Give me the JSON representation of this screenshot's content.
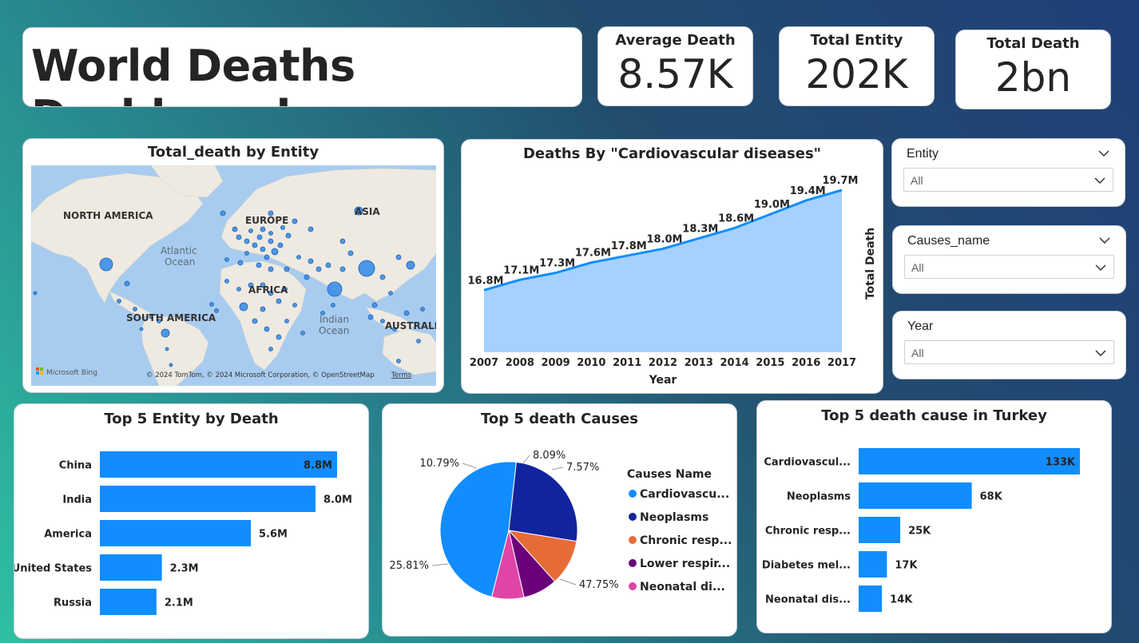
{
  "header": {
    "title": "World Deaths Dashboard"
  },
  "kpis": [
    {
      "label": "Average Death",
      "value": "8.57K"
    },
    {
      "label": "Total Entity",
      "value": "202K"
    },
    {
      "label": "Total Death",
      "value": "2bn"
    }
  ],
  "map": {
    "title": "Total_death by Entity",
    "labels": {
      "north_america": "NORTH AMERICA",
      "europe": "EUROPE",
      "asia": "ASIA",
      "africa": "AFRICA",
      "south_america": "SOUTH AMERICA",
      "australia": "AUSTRALIA",
      "atlantic": "Atlantic",
      "ocean": "Ocean",
      "indian": "Indian",
      "ocean2": "Ocean"
    },
    "attribution": "© 2024 TomTom, © 2024 Microsoft Corporation, © OpenStreetMap",
    "terms": "Terms",
    "logo": "Microsoft Bing",
    "colors": {
      "water": "#a8ccef",
      "land": "#eeeae1",
      "bubble": "#3a8ee8"
    }
  },
  "slicers": [
    {
      "label": "Entity",
      "value": "All"
    },
    {
      "label": "Causes_name",
      "value": "All"
    },
    {
      "label": "Year",
      "value": "All"
    }
  ],
  "chart_data": [
    {
      "type": "area",
      "title": "Deaths By \"Cardiovascular diseases\"",
      "xlabel": "Year",
      "ylabel": "Total Death",
      "x": [
        "2007",
        "2008",
        "2009",
        "2010",
        "2011",
        "2012",
        "2013",
        "2014",
        "2015",
        "2016",
        "2017"
      ],
      "values": [
        16.8,
        17.1,
        17.3,
        17.6,
        17.8,
        18.0,
        18.3,
        18.6,
        19.0,
        19.4,
        19.7
      ],
      "data_labels": [
        "16.8M",
        "17.1M",
        "17.3M",
        "17.6M",
        "17.8M",
        "18.0M",
        "18.3M",
        "18.6M",
        "19.0M",
        "19.4M",
        "19.7M"
      ],
      "unit": "M",
      "colors": {
        "line": "#118dff",
        "fill": "#a6d1ff"
      }
    },
    {
      "type": "bar",
      "orientation": "horizontal",
      "title": "Top 5 Entity by Death",
      "categories": [
        "China",
        "India",
        "America",
        "United States",
        "Russia"
      ],
      "values": [
        8.8,
        8.0,
        5.6,
        2.3,
        2.1
      ],
      "data_labels": [
        "8.8M",
        "8.0M",
        "5.6M",
        "2.3M",
        "2.1M"
      ],
      "unit": "M",
      "color": "#118dff"
    },
    {
      "type": "pie",
      "title": "Top 5 death Causes",
      "legend_title": "Causes Name",
      "legend_placement": "right",
      "categories": [
        "Cardiovascu...",
        "Neoplasms",
        "Chronic resp...",
        "Lower respir...",
        "Neonatal di..."
      ],
      "values": [
        47.75,
        25.81,
        10.79,
        8.09,
        7.57
      ],
      "data_labels": [
        "47.75%",
        "25.81%",
        "10.79%",
        "8.09%",
        "7.57%"
      ],
      "colors": [
        "#118dff",
        "#12239e",
        "#e66c37",
        "#6b007b",
        "#e044a7"
      ]
    },
    {
      "type": "bar",
      "orientation": "horizontal",
      "title": "Top 5 death cause in Turkey",
      "categories": [
        "Cardiovascul...",
        "Neoplasms",
        "Chronic resp...",
        "Diabetes mel...",
        "Neonatal dis..."
      ],
      "values": [
        133,
        68,
        25,
        17,
        14
      ],
      "data_labels": [
        "133K",
        "68K",
        "25K",
        "17K",
        "14K"
      ],
      "unit": "K",
      "color": "#118dff"
    }
  ]
}
